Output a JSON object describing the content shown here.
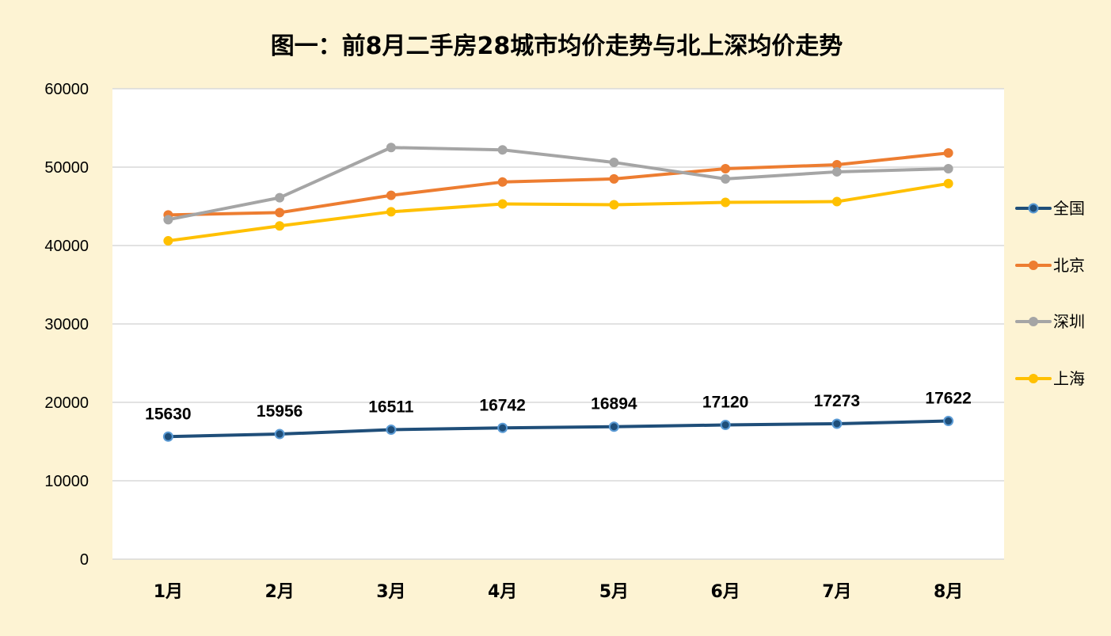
{
  "chart_data": {
    "type": "line",
    "title": "图一：前8月二手房28城市均价走势与北上深均价走势",
    "xlabel": "",
    "ylabel": "",
    "categories": [
      "1月",
      "2月",
      "3月",
      "4月",
      "5月",
      "6月",
      "7月",
      "8月"
    ],
    "ylim": [
      0,
      60000
    ],
    "yticks": [
      "0",
      "10000",
      "20000",
      "30000",
      "40000",
      "50000",
      "60000"
    ],
    "grid": true,
    "legend_position": "right",
    "series": [
      {
        "name": "全国",
        "color": "#1f4e79",
        "values": [
          15630,
          15956,
          16511,
          16742,
          16894,
          17120,
          17273,
          17622
        ],
        "data_labels": [
          "15630",
          "15956",
          "16511",
          "16742",
          "16894",
          "17120",
          "17273",
          "17622"
        ]
      },
      {
        "name": "北京",
        "color": "#ed7d31",
        "values": [
          43900,
          44200,
          46400,
          48100,
          48500,
          49800,
          50300,
          51800
        ]
      },
      {
        "name": "深圳",
        "color": "#a5a5a5",
        "values": [
          43300,
          46100,
          52500,
          52200,
          50600,
          48500,
          49400,
          49800
        ]
      },
      {
        "name": "上海",
        "color": "#ffc000",
        "values": [
          40600,
          42500,
          44300,
          45300,
          45200,
          45500,
          45600,
          47900
        ]
      }
    ]
  }
}
